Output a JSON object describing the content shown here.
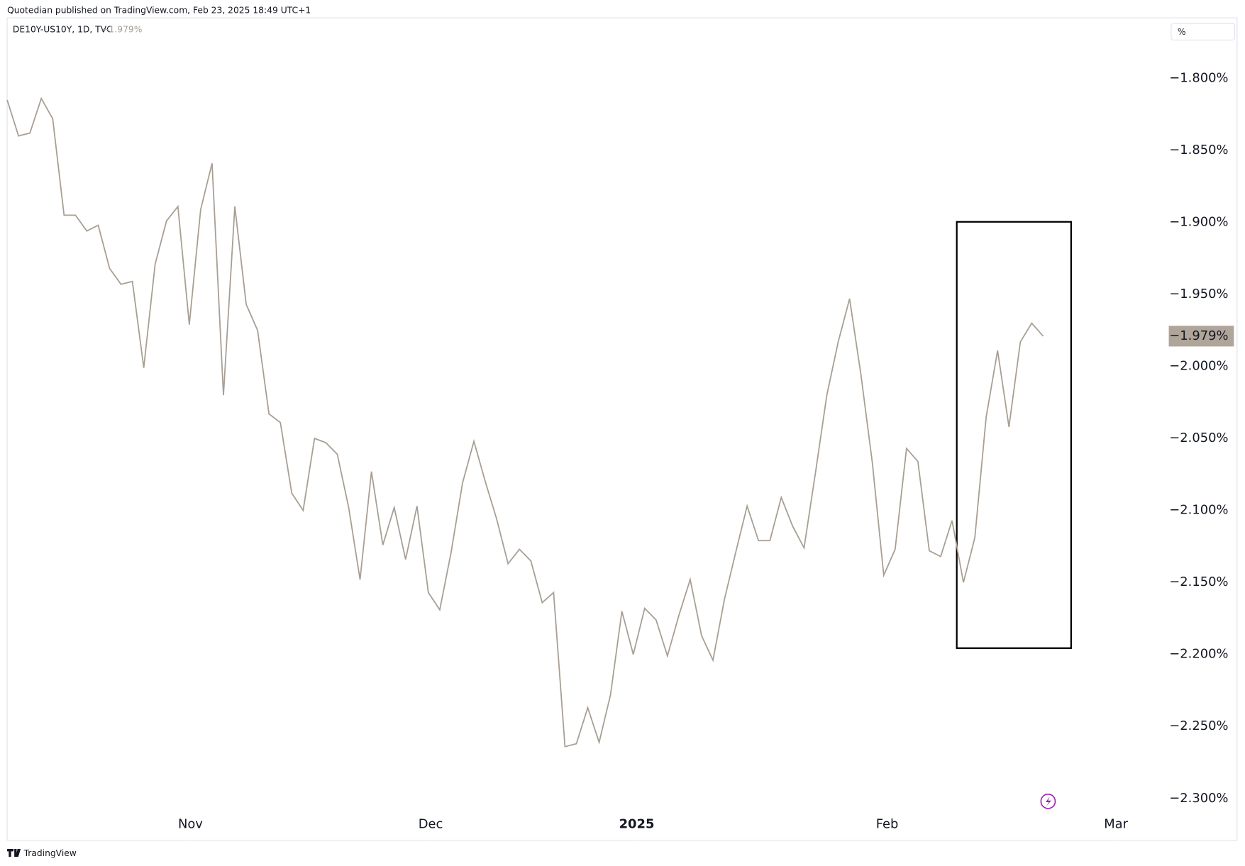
{
  "header": {
    "title": "Quotedian published on TradingView.com, Feb 23, 2025 18:49 UTC+1"
  },
  "chart_data": {
    "type": "line",
    "legend": {
      "symbol": "DE10Y-US10Y, 1D, TVC",
      "last": "−1.979%"
    },
    "unit_button": "%",
    "price_label": {
      "value": -1.979,
      "label": "−1.979%"
    },
    "color": "#a89f94",
    "values": [
      -1.815,
      -1.84,
      -1.838,
      -1.814,
      -1.828,
      -1.895,
      -1.895,
      -1.906,
      -1.902,
      -1.932,
      -1.943,
      -1.941,
      -2.001,
      -1.929,
      -1.899,
      -1.889,
      -1.971,
      -1.891,
      -1.859,
      -2.02,
      -1.889,
      -1.957,
      -1.975,
      -2.033,
      -2.039,
      -2.088,
      -2.1,
      -2.05,
      -2.053,
      -2.061,
      -2.098,
      -2.148,
      -2.073,
      -2.124,
      -2.098,
      -2.134,
      -2.097,
      -2.157,
      -2.169,
      -2.129,
      -2.081,
      -2.052,
      -2.08,
      -2.106,
      -2.137,
      -2.127,
      -2.135,
      -2.164,
      -2.157,
      -2.264,
      -2.262,
      -2.237,
      -2.261,
      -2.228,
      -2.17,
      -2.2,
      -2.168,
      -2.176,
      -2.201,
      -2.173,
      -2.148,
      -2.187,
      -2.204,
      -2.162,
      -2.129,
      -2.097,
      -2.121,
      -2.121,
      -2.091,
      -2.111,
      -2.126,
      -2.074,
      -2.02,
      -1.983,
      -1.953,
      -2.006,
      -2.067,
      -2.145,
      -2.127,
      -2.057,
      -2.066,
      -2.128,
      -2.132,
      -2.107,
      -2.15,
      -2.119,
      -2.035,
      -1.989,
      -2.042,
      -1.983,
      -1.97,
      -1.979
    ],
    "xlim": [
      0,
      101.2
    ],
    "xticks": [
      {
        "value": 16.1,
        "label": "Nov"
      },
      {
        "value": 37.2,
        "label": "Dec"
      },
      {
        "value": 55.3,
        "label": "2025"
      },
      {
        "value": 77.3,
        "label": "Feb"
      },
      {
        "value": 97.4,
        "label": "Mar"
      }
    ],
    "ylim": [
      -2.329,
      -1.758
    ],
    "yticks": [
      {
        "value": -1.8,
        "label": "−1.800%"
      },
      {
        "value": -1.85,
        "label": "−1.850%"
      },
      {
        "value": -1.9,
        "label": "−1.900%"
      },
      {
        "value": -1.95,
        "label": "−1.950%"
      },
      {
        "value": -2.0,
        "label": "−2.000%"
      },
      {
        "value": -2.05,
        "label": "−2.050%"
      },
      {
        "value": -2.1,
        "label": "−2.100%"
      },
      {
        "value": -2.15,
        "label": "−2.150%"
      },
      {
        "value": -2.2,
        "label": "−2.200%"
      },
      {
        "value": -2.25,
        "label": "−2.250%"
      },
      {
        "value": -2.3,
        "label": "−2.300%"
      }
    ]
  },
  "footer": {
    "brand": "TradingView"
  }
}
